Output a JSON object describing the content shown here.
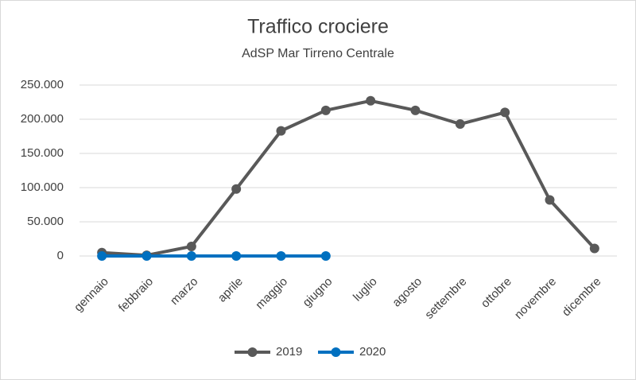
{
  "chart_data": {
    "type": "line",
    "title": "Traffico crociere",
    "subtitle": "AdSP Mar Tirreno Centrale",
    "categories": [
      "gennaio",
      "febbraio",
      "marzo",
      "aprile",
      "maggio",
      "giugno",
      "luglio",
      "agosto",
      "settembre",
      "ottobre",
      "novembre",
      "dicembre"
    ],
    "series": [
      {
        "name": "2019",
        "color": "#595959",
        "values": [
          5000,
          1000,
          14000,
          98000,
          183000,
          213000,
          227000,
          213000,
          193000,
          210000,
          82000,
          11000
        ]
      },
      {
        "name": "2020",
        "color": "#0070c0",
        "values": [
          0,
          0,
          0,
          0,
          0,
          0,
          null,
          null,
          null,
          null,
          null,
          null
        ]
      }
    ],
    "ylim": [
      0,
      250000
    ],
    "yticks": [
      0,
      {
        "value": 50000,
        "label": "50.000"
      },
      {
        "value": 100000,
        "label": "100.000"
      },
      {
        "value": 150000,
        "label": "150.000"
      },
      {
        "value": 200000,
        "label": "200.000"
      },
      {
        "value": 250000,
        "label": "250.000"
      }
    ],
    "grid": true,
    "legend": "bottom"
  }
}
